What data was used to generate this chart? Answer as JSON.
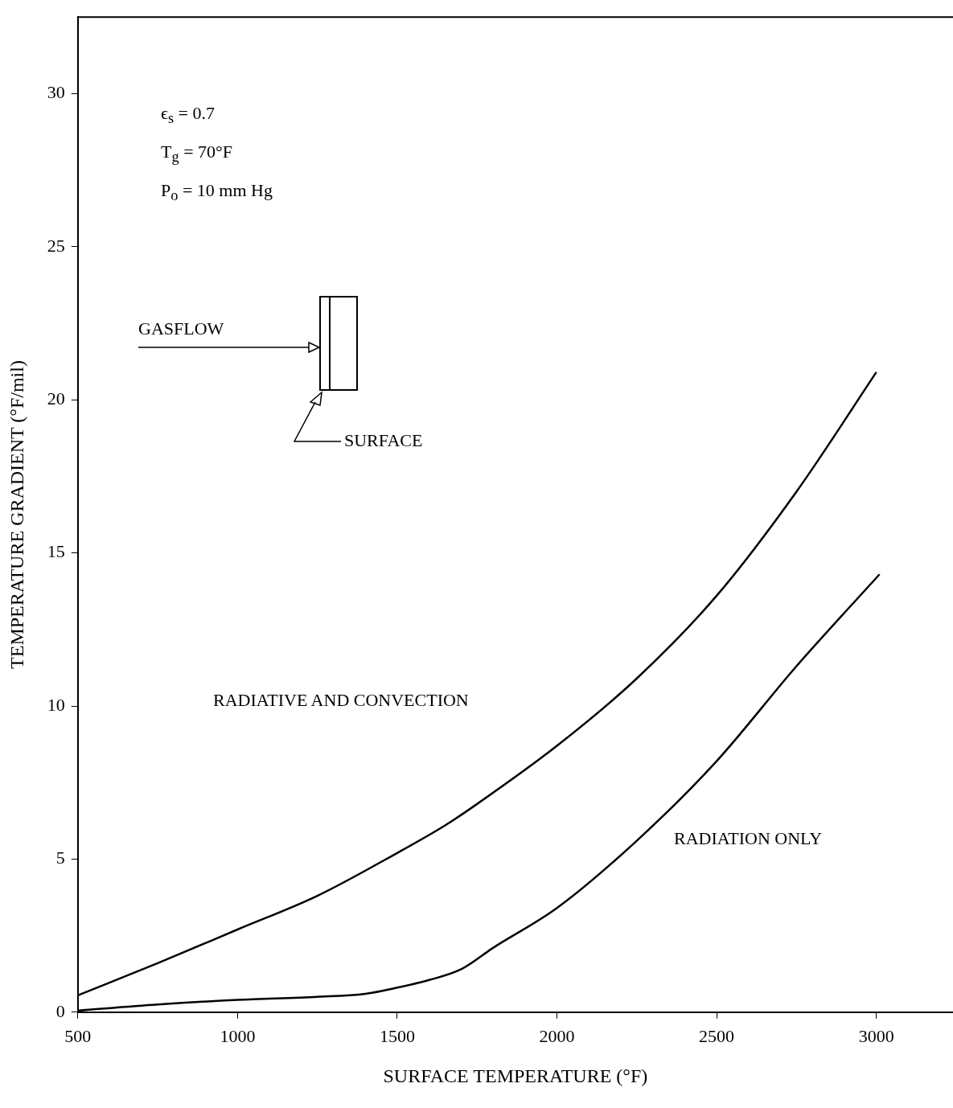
{
  "chart_data": {
    "type": "line",
    "xlabel": "SURFACE TEMPERATURE (°F)",
    "ylabel": "TEMPERATURE GRADIENT (°F/mil)",
    "xlim": [
      500,
      3240
    ],
    "xticks": [
      500,
      1000,
      1500,
      2000,
      2500,
      3000
    ],
    "ylim": [
      0,
      32.5
    ],
    "yticks": [
      0,
      5,
      10,
      15,
      20,
      25,
      30
    ],
    "grid": false,
    "legend": false,
    "marker": "none",
    "line_style": "solid",
    "series": [
      {
        "color": "#000000",
        "x": [
          500,
          750,
          1000,
          1250,
          1500,
          1650,
          1750,
          2000,
          2250,
          2500,
          2750,
          3000
        ],
        "values": [
          0.55,
          1.6,
          2.7,
          3.8,
          5.2,
          6.1,
          6.8,
          8.7,
          10.9,
          13.6,
          17.0,
          20.9
        ]
      },
      {
        "color": "#000000",
        "x": [
          500,
          750,
          1000,
          1250,
          1400,
          1500,
          1600,
          1700,
          1800,
          2000,
          2250,
          2500,
          2750,
          3010
        ],
        "values": [
          0.05,
          0.25,
          0.4,
          0.5,
          0.6,
          0.8,
          1.05,
          1.4,
          2.1,
          3.4,
          5.6,
          8.2,
          11.3,
          14.3
        ]
      }
    ],
    "annotations": [
      "ϵ$_{s}$ = 0.7",
      "T$_{g}$ = 70°F",
      "P$_{o}$ = 10 mm Hg",
      "GASFLOW",
      "SURFACE",
      "RADIATIVE AND CONVECTION",
      "RADIATION ONLY"
    ]
  }
}
